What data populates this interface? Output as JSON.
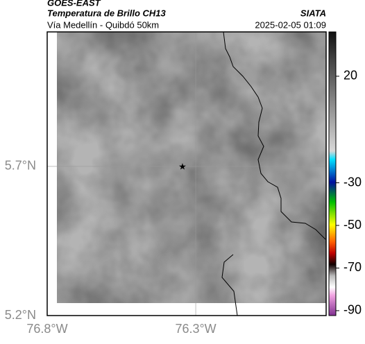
{
  "header": {
    "product": "GOES-EAST",
    "title": "Temperatura de Brillo CH13",
    "subtitle": "Vía Medellín - Quibdó 50km",
    "source": "SIATA",
    "timestamp": "2025-02-05 01:09"
  },
  "map": {
    "xlim": [
      -76.8,
      -75.861
    ],
    "ylim": [
      5.2,
      6.151
    ],
    "xticks": [
      {
        "value": -76.8,
        "label": "76.8°W"
      },
      {
        "value": -76.3,
        "label": "76.3°W"
      }
    ],
    "yticks": [
      {
        "value": 5.7,
        "label": "5.7°N"
      },
      {
        "value": 5.2,
        "label": "5.2°N"
      }
    ],
    "grid": true
  },
  "colorbar": {
    "lim": [
      -92.3,
      40.8
    ],
    "ticks": [
      20,
      -30,
      -50,
      -70,
      -90
    ]
  }
}
